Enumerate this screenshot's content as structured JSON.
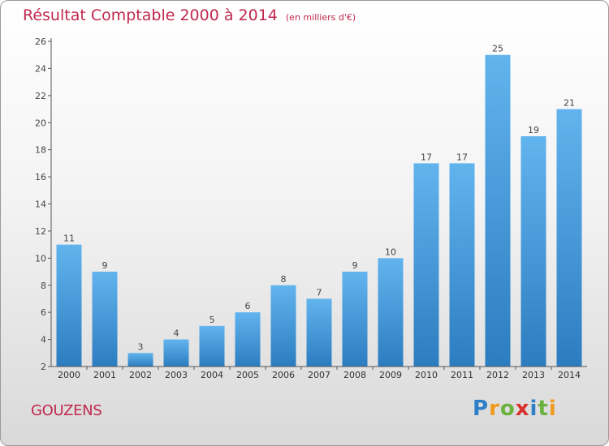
{
  "header": {
    "title": "Résultat Comptable 2000 à 2014",
    "unit": "(en milliers d'€)"
  },
  "footer": {
    "town": "GOUZENS",
    "brand_letters": [
      "P",
      "r",
      "o",
      "x",
      "i",
      "t",
      "i"
    ],
    "brand_colors": [
      "#2f7fc8",
      "#f29a1c",
      "#6ab23d",
      "#d9302c",
      "#2f7fc8",
      "#6ab23d",
      "#f29a1c"
    ]
  },
  "colors": {
    "title": "#c0284f",
    "bar_light": "#62b4ee",
    "bar_dark": "#2c7dc0",
    "axis": "#555555"
  },
  "chart_data": {
    "type": "bar",
    "title": "Résultat Comptable 2000 à 2014",
    "ylabel": "",
    "xlabel": "",
    "categories": [
      "2000",
      "2001",
      "2002",
      "2003",
      "2004",
      "2005",
      "2006",
      "2007",
      "2008",
      "2009",
      "2010",
      "2011",
      "2012",
      "2013",
      "2014"
    ],
    "values": [
      11,
      9,
      3,
      4,
      5,
      6,
      8,
      7,
      9,
      10,
      17,
      17,
      25,
      19,
      21
    ],
    "ylim": [
      2,
      26
    ],
    "yticks": [
      2,
      4,
      6,
      8,
      10,
      12,
      14,
      16,
      18,
      20,
      22,
      24,
      26
    ],
    "grid": false,
    "legend": "none"
  }
}
